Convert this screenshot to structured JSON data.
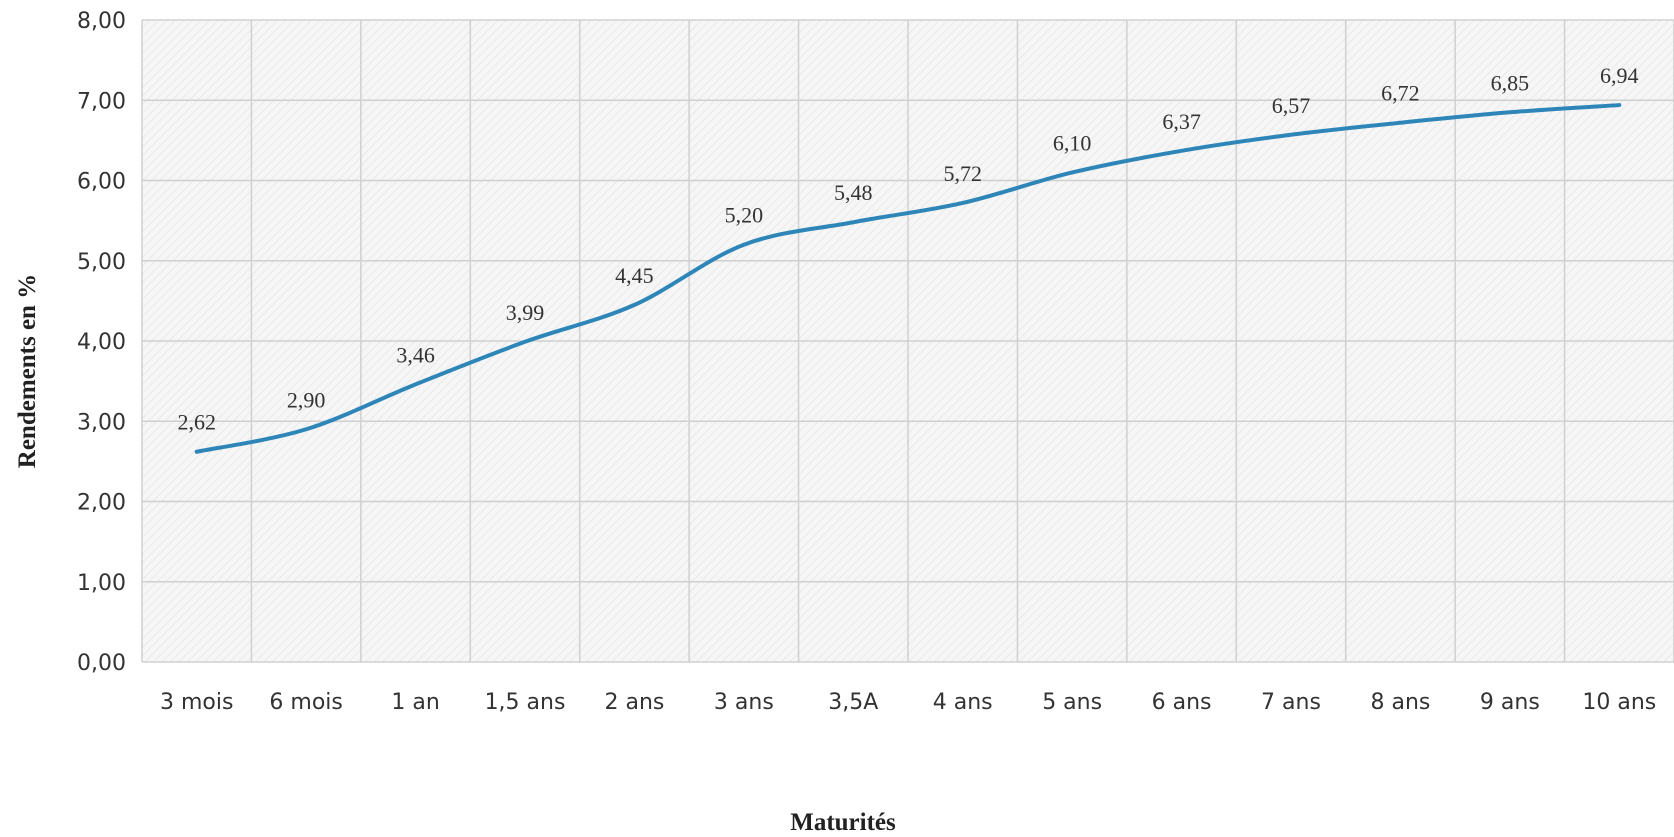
{
  "chart_data": {
    "type": "line",
    "title": "",
    "xlabel": "Maturités",
    "ylabel": "Rendements en %",
    "categories": [
      "3 mois",
      "6 mois",
      "1 an",
      "1,5 ans",
      "2 ans",
      "3 ans",
      "3,5A",
      "4 ans",
      "5 ans",
      "6 ans",
      "7 ans",
      "8 ans",
      "9 ans",
      "10 ans"
    ],
    "series": [
      {
        "values": [
          2.62,
          2.9,
          3.46,
          3.99,
          4.45,
          5.2,
          5.48,
          5.72,
          6.1,
          6.37,
          6.57,
          6.72,
          6.85,
          6.94
        ],
        "labels": [
          "2,62",
          "2,90",
          "3,46",
          "3,99",
          "4,45",
          "5,20",
          "5,48",
          "5,72",
          "6,10",
          "6,37",
          "6,57",
          "6,72",
          "6,85",
          "6,94"
        ],
        "color": "#2e86b8"
      }
    ],
    "ylim": [
      0,
      8
    ],
    "yticks": [
      "0,00",
      "1,00",
      "2,00",
      "3,00",
      "4,00",
      "5,00",
      "6,00",
      "7,00",
      "8,00"
    ],
    "grid": true,
    "smooth": true
  }
}
